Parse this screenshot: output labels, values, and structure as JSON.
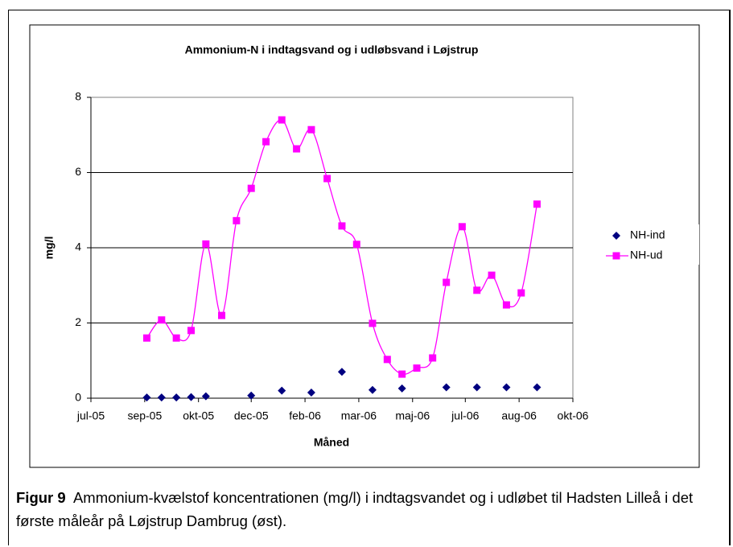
{
  "chart_data": {
    "type": "scatter",
    "title": "Ammonium-N i indtagsvand og i udløbsvand i Løjstrup",
    "x_label": "Måned",
    "y_label": "mg/l",
    "xlim": [
      38534,
      38991
    ],
    "xticks": [
      {
        "value": 38534,
        "label": "jul-05"
      },
      {
        "value": 38585,
        "label": "sep-05"
      },
      {
        "value": 38636,
        "label": "okt-05"
      },
      {
        "value": 38686,
        "label": "dec-05"
      },
      {
        "value": 38737,
        "label": "feb-06"
      },
      {
        "value": 38788,
        "label": "mar-06"
      },
      {
        "value": 38839,
        "label": "maj-06"
      },
      {
        "value": 38889,
        "label": "jul-06"
      },
      {
        "value": 38940,
        "label": "aug-06"
      },
      {
        "value": 38991,
        "label": "okt-06"
      }
    ],
    "ylim": [
      0,
      8
    ],
    "yticks": [
      0,
      2,
      4,
      6,
      8
    ],
    "grid": true,
    "legend": "right",
    "series": [
      {
        "name": "NH-ind",
        "color": "#000080",
        "marker": "diamond",
        "line": false,
        "x": [
          38587,
          38601,
          38615,
          38629,
          38643,
          38686,
          38715,
          38743,
          38772,
          38801,
          38829,
          38871,
          38900,
          38928,
          38957
        ],
        "values": [
          0.02,
          0.02,
          0.02,
          0.03,
          0.05,
          0.07,
          0.2,
          0.15,
          0.7,
          0.22,
          0.26,
          0.29,
          0.29,
          0.29,
          0.29
        ]
      },
      {
        "name": "NH-ud",
        "color": "#ff00ff",
        "marker": "square",
        "line": true,
        "x": [
          38587,
          38601,
          38615,
          38629,
          38643,
          38658,
          38672,
          38686,
          38700,
          38715,
          38729,
          38743,
          38758,
          38772,
          38786,
          38801,
          38815,
          38829,
          38843,
          38858,
          38871,
          38886,
          38900,
          38914,
          38928,
          38942,
          38957
        ],
        "values": [
          1.6,
          2.08,
          1.6,
          1.8,
          4.1,
          2.2,
          4.72,
          5.58,
          6.82,
          7.4,
          6.63,
          7.14,
          5.84,
          4.58,
          4.09,
          1.99,
          1.03,
          0.64,
          0.8,
          1.07,
          3.08,
          4.56,
          2.87,
          3.27,
          2.48,
          2.8,
          5.16
        ]
      }
    ]
  },
  "figure_label": "Figur 9",
  "caption": "Ammonium-kvælstof koncentrationen (mg/l) i indtagsvandet og i udløbet til Hadsten Lilleå i det første måleår på Løjstrup Dambrug (øst)."
}
